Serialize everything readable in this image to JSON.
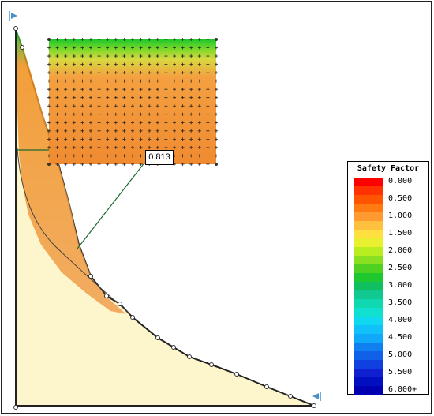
{
  "min_safety_factor": "0.813",
  "legend": {
    "title": "Safety Factor",
    "entries": [
      {
        "label": "0.000",
        "color": "#ff0000"
      },
      {
        "label": "",
        "color": "#ff3300"
      },
      {
        "label": "0.500",
        "color": "#ff5500"
      },
      {
        "label": "",
        "color": "#ff7a10"
      },
      {
        "label": "1.000",
        "color": "#ff9a30"
      },
      {
        "label": "",
        "color": "#ffc040"
      },
      {
        "label": "1.500",
        "color": "#ffe040"
      },
      {
        "label": "",
        "color": "#e8f030"
      },
      {
        "label": "2.000",
        "color": "#b8ee20"
      },
      {
        "label": "",
        "color": "#88e020"
      },
      {
        "label": "2.500",
        "color": "#50d020"
      },
      {
        "label": "",
        "color": "#20c830"
      },
      {
        "label": "3.000",
        "color": "#10c060"
      },
      {
        "label": "",
        "color": "#10c890"
      },
      {
        "label": "3.500",
        "color": "#10d8b0"
      },
      {
        "label": "",
        "color": "#10e0d0"
      },
      {
        "label": "4.000",
        "color": "#10d8f0"
      },
      {
        "label": "",
        "color": "#10c0f8"
      },
      {
        "label": "4.500",
        "color": "#10a8f8"
      },
      {
        "label": "",
        "color": "#1080f0"
      },
      {
        "label": "5.000",
        "color": "#1060e8"
      },
      {
        "label": "",
        "color": "#1040e0"
      },
      {
        "label": "5.500",
        "color": "#1020d0"
      },
      {
        "label": "",
        "color": "#0010c0"
      },
      {
        "label": "6.000+",
        "color": "#0000b0"
      }
    ]
  },
  "colors": {
    "slope_fill": "#fdf5cc",
    "grid_fill": "#f08838",
    "grid_top": "#20c030",
    "slip_surface": "#ff8a10",
    "support_marker": "#4a90c8"
  }
}
